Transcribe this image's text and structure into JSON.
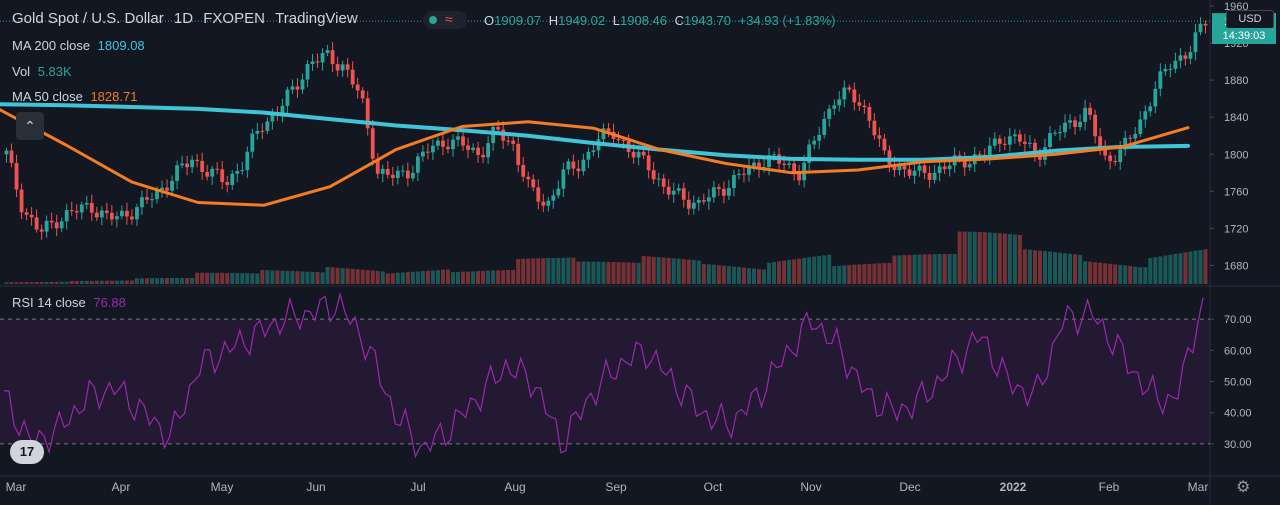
{
  "header": {
    "symbol": "Gold Spot / U.S. Dollar",
    "interval": "1D",
    "exchange": "FXOPEN",
    "source": "TradingView",
    "indicator_glyph": "≈",
    "ohlc": {
      "o_label": "O",
      "o": "1909.07",
      "h_label": "H",
      "h": "1949.02",
      "l_label": "L",
      "l": "1908.46",
      "c_label": "C",
      "c": "1943.70",
      "change": "+34.93 (+1.83%)"
    }
  },
  "legends": {
    "ma200": {
      "label": "MA 200 close",
      "value": "1809.08"
    },
    "vol": {
      "label": "Vol",
      "value": "5.83K"
    },
    "ma50": {
      "label": "MA 50 close",
      "value": "1828.71"
    },
    "rsi": {
      "label": "RSI 14 close",
      "value": "76.88"
    }
  },
  "currency": "USD",
  "countdown": "14:39:03",
  "logo_text": "17",
  "collapse_glyph": "⌃",
  "settings_glyph": "⚙",
  "colors": {
    "up": "#26a69a",
    "down": "#ef5350",
    "ma50": "#f57c20",
    "ma200": "#40c4d8",
    "rsi": "#9c27b0",
    "bg": "#131722"
  },
  "chart_data": [
    {
      "type": "candlestick",
      "title": "Gold Spot / U.S. Dollar",
      "ylim": [
        1660,
        1960
      ],
      "y_ticks": [
        1680,
        1720,
        1760,
        1800,
        1840,
        1880,
        1920,
        1960
      ],
      "x_ticks": [
        "Mar",
        "Apr",
        "May",
        "Jun",
        "Jul",
        "Aug",
        "Sep",
        "Oct",
        "Nov",
        "Dec",
        "2022",
        "Jan",
        "Feb",
        "Mar"
      ],
      "close_path": [
        [
          "Mar",
          1800
        ],
        [
          "Mar",
          1740
        ],
        [
          "Mar",
          1715
        ],
        [
          "Mar",
          1730
        ],
        [
          "Mar",
          1738
        ],
        [
          "Mar",
          1745
        ],
        [
          "Apr",
          1730
        ],
        [
          "Apr",
          1735
        ],
        [
          "Apr",
          1745
        ],
        [
          "Apr",
          1760
        ],
        [
          "Apr",
          1778
        ],
        [
          "Apr",
          1795
        ],
        [
          "May",
          1780
        ],
        [
          "May",
          1770
        ],
        [
          "May",
          1790
        ],
        [
          "May",
          1830
        ],
        [
          "May",
          1845
        ],
        [
          "May",
          1870
        ],
        [
          "Jun",
          1900
        ],
        [
          "Jun",
          1905
        ],
        [
          "Jun",
          1895
        ],
        [
          "Jun",
          1860
        ],
        [
          "Jun",
          1780
        ],
        [
          "Jun",
          1775
        ],
        [
          "Jul",
          1785
        ],
        [
          "Jul",
          1805
        ],
        [
          "Jul",
          1815
        ],
        [
          "Jul",
          1810
        ],
        [
          "Jul",
          1800
        ],
        [
          "Jul",
          1825
        ],
        [
          "Aug",
          1810
        ],
        [
          "Aug",
          1760
        ],
        [
          "Aug",
          1745
        ],
        [
          "Aug",
          1780
        ],
        [
          "Aug",
          1790
        ],
        [
          "Sep",
          1815
        ],
        [
          "Sep",
          1825
        ],
        [
          "Sep",
          1800
        ],
        [
          "Sep",
          1790
        ],
        [
          "Sep",
          1760
        ],
        [
          "Sep",
          1755
        ],
        [
          "Oct",
          1745
        ],
        [
          "Oct",
          1760
        ],
        [
          "Oct",
          1770
        ],
        [
          "Oct",
          1785
        ],
        [
          "Oct",
          1795
        ],
        [
          "Oct",
          1790
        ],
        [
          "Nov",
          1780
        ],
        [
          "Nov",
          1820
        ],
        [
          "Nov",
          1860
        ],
        [
          "Nov",
          1865
        ],
        [
          "Nov",
          1845
        ],
        [
          "Nov",
          1795
        ],
        [
          "Dec",
          1785
        ],
        [
          "Dec",
          1778
        ],
        [
          "Dec",
          1782
        ],
        [
          "Dec",
          1790
        ],
        [
          "Dec",
          1795
        ],
        [
          "Dec",
          1800
        ],
        [
          "2022",
          1820
        ],
        [
          "2022",
          1815
        ],
        [
          "Jan",
          1800
        ],
        [
          "Jan",
          1820
        ],
        [
          "Jan",
          1835
        ],
        [
          "Jan",
          1845
        ],
        [
          "Feb",
          1795
        ],
        [
          "Feb",
          1802
        ],
        [
          "Feb",
          1830
        ],
        [
          "Feb",
          1870
        ],
        [
          "Feb",
          1900
        ],
        [
          "Feb",
          1910
        ],
        [
          "Feb",
          1943.7
        ]
      ]
    },
    {
      "type": "line",
      "name": "MA 200 close",
      "values": [
        1854,
        1853,
        1851,
        1849,
        1845,
        1838,
        1831,
        1826,
        1820,
        1812,
        1805,
        1799,
        1795,
        1794,
        1794,
        1797,
        1804,
        1808,
        1809.08
      ]
    },
    {
      "type": "line",
      "name": "MA 50 close",
      "values": [
        1848,
        1810,
        1770,
        1748,
        1745,
        1765,
        1805,
        1830,
        1835,
        1828,
        1805,
        1790,
        1780,
        1783,
        1792,
        1795,
        1800,
        1808,
        1828.71
      ]
    },
    {
      "type": "bar",
      "name": "Vol",
      "value_label": "5.83K",
      "relative_levels": [
        0.04,
        0.05,
        0.08,
        0.15,
        0.2,
        0.3,
        0.25,
        0.2,
        0.35,
        0.3,
        0.4,
        0.35,
        0.5,
        0.3,
        0.4,
        0.7,
        0.5,
        0.4,
        0.6
      ]
    },
    {
      "type": "line",
      "name": "RSI 14 close",
      "ylim": [
        20,
        80
      ],
      "y_ticks": [
        30,
        40,
        50,
        60,
        70
      ],
      "band": [
        30,
        70
      ],
      "values": [
        45,
        30,
        35,
        45,
        48,
        40,
        32,
        55,
        60,
        65,
        70,
        72,
        75,
        62,
        40,
        28,
        35,
        45,
        55,
        50,
        30,
        45,
        55,
        60,
        50,
        40,
        36,
        45,
        58,
        70,
        60,
        45,
        40,
        45,
        55,
        65,
        50,
        45,
        70,
        72,
        60,
        47,
        43,
        76.88
      ]
    }
  ]
}
